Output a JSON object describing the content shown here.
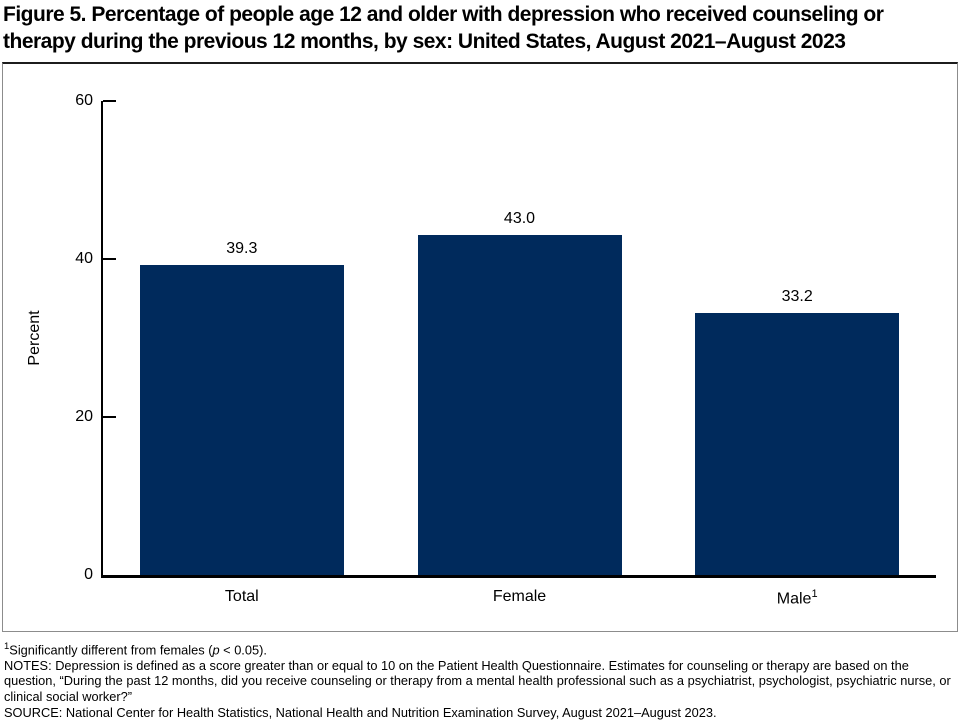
{
  "title": {
    "line1": "Figure 5. Percentage of people age 12 and older with depression who received counseling or",
    "line2": "therapy during the previous 12 months, by sex: United States, August 2021–August 2023"
  },
  "chart_data": {
    "type": "bar",
    "title": "Figure 5. Percentage of people age 12 and older with depression who received counseling or therapy during the previous 12 months, by sex: United States, August 2021–August 2023",
    "categories": [
      "Total",
      "Female",
      "Male"
    ],
    "category_superscripts": [
      "",
      "",
      "1"
    ],
    "values": [
      39.3,
      43.0,
      33.2
    ],
    "value_labels": [
      "39.3",
      "43.0",
      "33.2"
    ],
    "xlabel": "",
    "ylabel": "Percent",
    "ylim": [
      0,
      60
    ],
    "yticks": [
      0,
      20,
      40,
      60
    ],
    "grid": false,
    "legend": "none",
    "bar_color": "#002A5C"
  },
  "colors": {
    "bar": "#002A5C",
    "axis": "#000000",
    "box_border": "#8C8C8C",
    "text": "#000000"
  },
  "footnotes": {
    "significance": {
      "sup": "1",
      "pre": "Significantly different from females (",
      "italic": "p",
      "post": " < 0.05)."
    },
    "notes": "NOTES: Depression is defined as a score greater than or equal to 10 on the Patient Health Questionnaire. Estimates for counseling or therapy are based on the question, “During the past 12 months, did you receive counseling or therapy from a mental health professional such as a psychiatrist, psychologist, psychiatric nurse, or clinical social worker?”",
    "source": "SOURCE: National Center for Health Statistics, National Health and Nutrition Examination Survey, August 2021–August 2023."
  }
}
